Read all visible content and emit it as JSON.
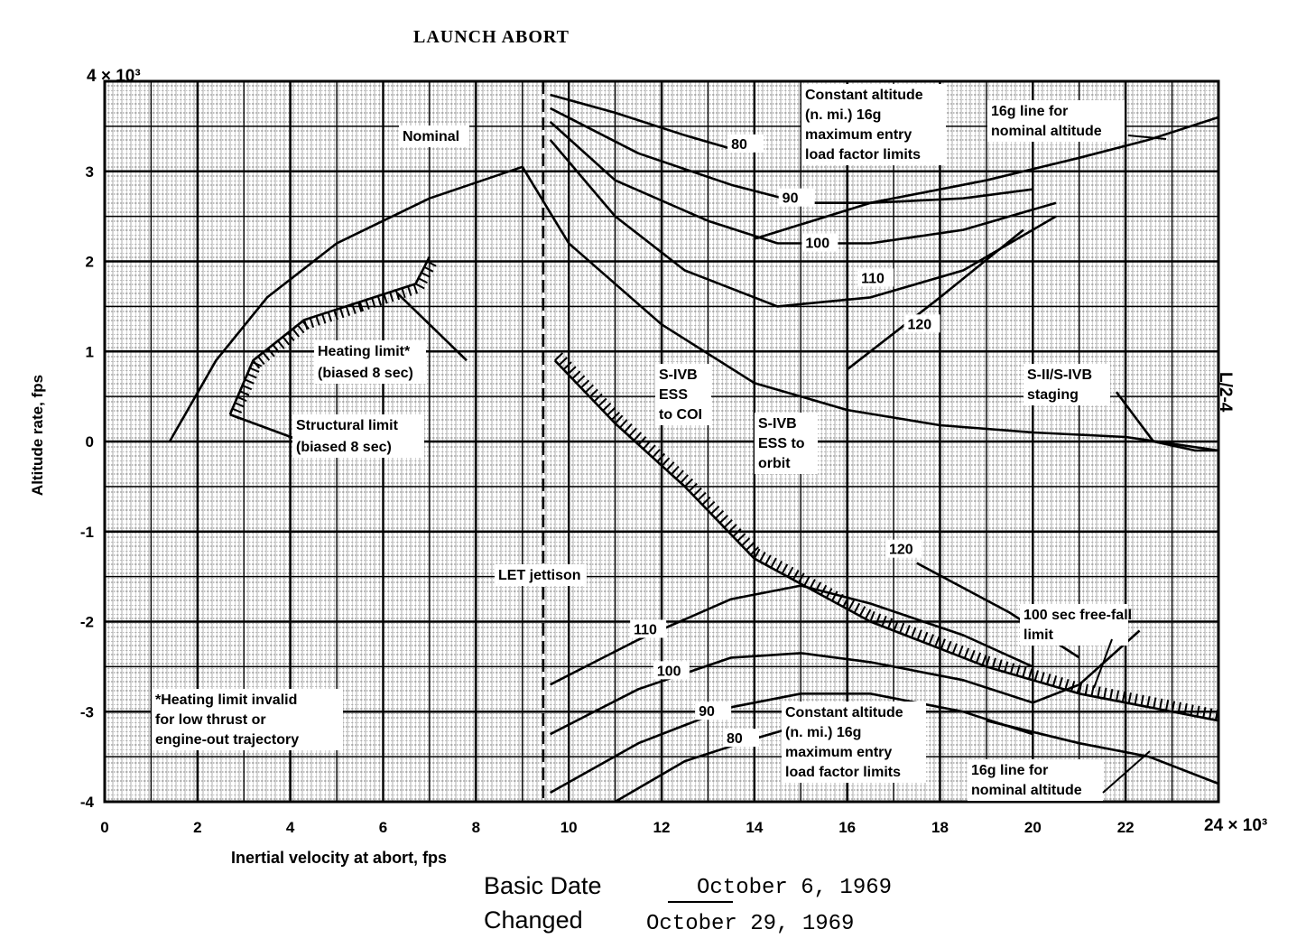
{
  "title": "LAUNCH ABORT",
  "page_code": "L/2-4",
  "basic_date_label": "Basic Date",
  "basic_date": "October 6, 1969",
  "changed_label": "Changed",
  "changed_date": "October 29, 1969",
  "chart_data": {
    "type": "line",
    "title": "LAUNCH ABORT",
    "xlabel": "Inertial velocity at abort, fps",
    "ylabel": "Altitude rate, fps",
    "x_multiplier": "24 × 10³",
    "y_multiplier": "4 × 10³",
    "xlim": [
      0,
      24000
    ],
    "ylim": [
      -4000,
      4000
    ],
    "x_ticks": [
      0,
      2,
      4,
      6,
      8,
      10,
      12,
      14,
      16,
      18,
      20,
      22
    ],
    "x_tick_labels": [
      "0",
      "2",
      "4",
      "6",
      "8",
      "10",
      "12",
      "14",
      "16",
      "18",
      "20",
      "22"
    ],
    "y_ticks": [
      3,
      2,
      1,
      0,
      -1,
      -2,
      -3,
      -4
    ],
    "y_tick_labels": [
      "3",
      "2",
      "1",
      "0",
      "-1",
      "-2",
      "-3",
      "-4"
    ],
    "grid": true,
    "series": [
      {
        "name": "Nominal",
        "points": [
          [
            1400,
            0
          ],
          [
            2400,
            900
          ],
          [
            3500,
            1600
          ],
          [
            5000,
            2200
          ],
          [
            7000,
            2700
          ],
          [
            9000,
            3050
          ]
        ]
      },
      {
        "points": [
          [
            9000,
            3050
          ],
          [
            10000,
            2200
          ],
          [
            12000,
            1300
          ],
          [
            14000,
            650
          ],
          [
            16000,
            350
          ],
          [
            18000,
            180
          ],
          [
            20000,
            100
          ],
          [
            22000,
            50
          ],
          [
            24000,
            -100
          ]
        ]
      },
      {
        "points": [
          [
            2700,
            300
          ],
          [
            3200,
            900
          ],
          [
            4300,
            1350
          ],
          [
            5500,
            1550
          ],
          [
            6700,
            1750
          ],
          [
            7000,
            2050
          ]
        ]
      },
      {
        "points": [
          [
            2700,
            300
          ],
          [
            4800,
            -100
          ]
        ]
      },
      {
        "points": [
          [
            6300,
            1650
          ],
          [
            7800,
            900
          ]
        ]
      },
      {
        "points": [
          [
            9700,
            900
          ],
          [
            11000,
            200
          ],
          [
            12500,
            -500
          ],
          [
            14000,
            -1300
          ],
          [
            16500,
            -2000
          ],
          [
            19000,
            -2500
          ],
          [
            21000,
            -2800
          ],
          [
            24000,
            -3100
          ]
        ]
      },
      {
        "points": [
          [
            9450,
            4000
          ],
          [
            9450,
            -4000
          ]
        ]
      },
      {
        "name": "80",
        "points": [
          [
            9600,
            3850
          ],
          [
            11000,
            3650
          ],
          [
            12500,
            3400
          ],
          [
            13500,
            3250
          ]
        ]
      },
      {
        "name": "90",
        "points": [
          [
            9600,
            3700
          ],
          [
            11500,
            3200
          ],
          [
            13500,
            2850
          ],
          [
            15000,
            2650
          ],
          [
            16500,
            2650
          ],
          [
            18500,
            2700
          ],
          [
            20000,
            2800
          ]
        ]
      },
      {
        "name": "100",
        "points": [
          [
            9600,
            3550
          ],
          [
            11000,
            2900
          ],
          [
            13000,
            2450
          ],
          [
            14500,
            2200
          ],
          [
            16500,
            2200
          ],
          [
            18500,
            2350
          ],
          [
            20500,
            2650
          ]
        ]
      },
      {
        "name": "110",
        "points": [
          [
            9600,
            3350
          ],
          [
            11000,
            2500
          ],
          [
            12500,
            1900
          ],
          [
            14500,
            1500
          ],
          [
            16500,
            1600
          ],
          [
            18500,
            1900
          ],
          [
            20500,
            2500
          ]
        ]
      },
      {
        "name": "120",
        "points": [
          [
            16000,
            800
          ],
          [
            18000,
            1600
          ],
          [
            19800,
            2350
          ]
        ]
      },
      {
        "name": "16g line for nominal altitude",
        "points": [
          [
            14000,
            2250
          ],
          [
            16500,
            2650
          ],
          [
            19000,
            2900
          ],
          [
            21000,
            3150
          ],
          [
            22500,
            3350
          ],
          [
            24000,
            3600
          ]
        ]
      },
      {
        "name": "80",
        "points": [
          [
            11000,
            -4000
          ],
          [
            12500,
            -3550
          ],
          [
            14000,
            -3300
          ],
          [
            15000,
            -3150
          ]
        ]
      },
      {
        "name": "90",
        "points": [
          [
            9600,
            -3900
          ],
          [
            11500,
            -3350
          ],
          [
            13500,
            -2950
          ],
          [
            15000,
            -2800
          ],
          [
            16500,
            -2800
          ],
          [
            18500,
            -3000
          ],
          [
            20000,
            -3250
          ]
        ]
      },
      {
        "name": "100",
        "points": [
          [
            9600,
            -3250
          ],
          [
            11500,
            -2750
          ],
          [
            13500,
            -2400
          ],
          [
            15000,
            -2350
          ],
          [
            16500,
            -2450
          ],
          [
            18500,
            -2650
          ],
          [
            20000,
            -2900
          ]
        ]
      },
      {
        "name": "110",
        "points": [
          [
            9600,
            -2700
          ],
          [
            11500,
            -2200
          ],
          [
            13500,
            -1750
          ],
          [
            15000,
            -1600
          ],
          [
            16500,
            -1800
          ],
          [
            18500,
            -2150
          ],
          [
            20000,
            -2500
          ]
        ]
      },
      {
        "name": "120",
        "points": [
          [
            17500,
            -1350
          ],
          [
            19500,
            -1900
          ],
          [
            21000,
            -2400
          ]
        ]
      },
      {
        "name": "16g line for nominal altitude",
        "points": [
          [
            19000,
            -3100
          ],
          [
            21000,
            -3350
          ],
          [
            22500,
            -3500
          ],
          [
            24000,
            -3800
          ]
        ]
      },
      {
        "name": "100 sec free-fall limit",
        "points": [
          [
            20000,
            -2900
          ],
          [
            21000,
            -2700
          ],
          [
            22300,
            -2100
          ]
        ]
      },
      {
        "points": [
          [
            21800,
            550
          ],
          [
            22600,
            0
          ],
          [
            23500,
            -100
          ],
          [
            24000,
            -100
          ]
        ]
      }
    ],
    "annotations": [
      {
        "text": "Nominal"
      },
      {
        "text": "Constant altitude (n. mi.) 16g maximum entry load factor limits"
      },
      {
        "text": "16g line for nominal altitude"
      },
      {
        "text": "Heating limit*"
      },
      {
        "text": "(biased 8 sec)"
      },
      {
        "text": "Structural limit"
      },
      {
        "text": "(biased 8 sec)"
      },
      {
        "text": "S-IVB ESS to COI"
      },
      {
        "text": "S-IVB ESS to orbit"
      },
      {
        "text": "S-II/S-IVB staging"
      },
      {
        "text": "LET jettison"
      },
      {
        "text": "100 sec free-fall limit"
      },
      {
        "text": "*Heating limit invalid for low thrust or engine-out trajectory"
      },
      {
        "text": "Constant altitude (n. mi.) 16g maximum entry load factor limits"
      },
      {
        "text": "16g line for nominal altitude"
      }
    ]
  }
}
